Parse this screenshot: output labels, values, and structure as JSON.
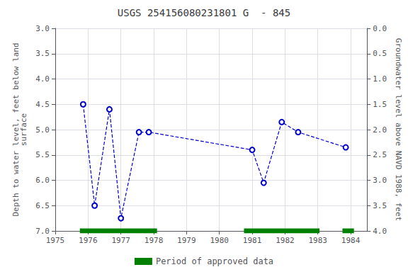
{
  "chart_data": {
    "type": "line",
    "title": "USGS 254156080231801 G  - 845",
    "y_label": "Depth to water level, feet below land\nsurface",
    "y2_label": "Groundwater level above NAVD 1988, feet",
    "x": [
      1975.85,
      1976.2,
      1976.65,
      1977.0,
      1977.55,
      1977.85,
      1981.0,
      1981.35,
      1981.9,
      1982.4,
      1983.85
    ],
    "series": [
      {
        "color": "#0000cc",
        "marker": "o",
        "line_style": "--",
        "values": [
          4.5,
          6.5,
          4.6,
          6.75,
          5.05,
          5.05,
          5.4,
          6.05,
          4.85,
          5.05,
          5.35
        ]
      }
    ],
    "xlim": [
      1975,
      1984.5
    ],
    "xticks": [
      1975,
      1976,
      1977,
      1978,
      1979,
      1980,
      1981,
      1982,
      1983,
      1984
    ],
    "ylim": [
      7.0,
      3.0
    ],
    "yticks": [
      {
        "value": 3.0,
        "label": "3.0"
      },
      3.5,
      {
        "value": 4.0,
        "label": "4.0"
      },
      4.5,
      {
        "value": 5.0,
        "label": "5.0"
      },
      5.5,
      {
        "value": 6.0,
        "label": "6.0"
      },
      6.5,
      {
        "value": 7.0,
        "label": "7.0"
      }
    ],
    "y2lim": [
      4.0,
      0.0
    ],
    "y2ticks": [
      {
        "value": 4.0,
        "label": "4.0"
      },
      3.5,
      {
        "value": 3.0,
        "label": "3.0"
      },
      2.5,
      {
        "value": 2.0,
        "label": "2.0"
      },
      1.5,
      {
        "value": 1.0,
        "label": "1.0"
      },
      0.5,
      {
        "value": 0.0,
        "label": "0.0"
      }
    ],
    "grid": true,
    "legend": "bottom",
    "approved_periods": {
      "name": "Period of approved data",
      "color": "#008000",
      "y": 7.0,
      "ranges": [
        [
          1975.75,
          1978.1
        ],
        [
          1980.75,
          1983.05
        ],
        [
          1983.75,
          1984.1
        ]
      ]
    }
  }
}
